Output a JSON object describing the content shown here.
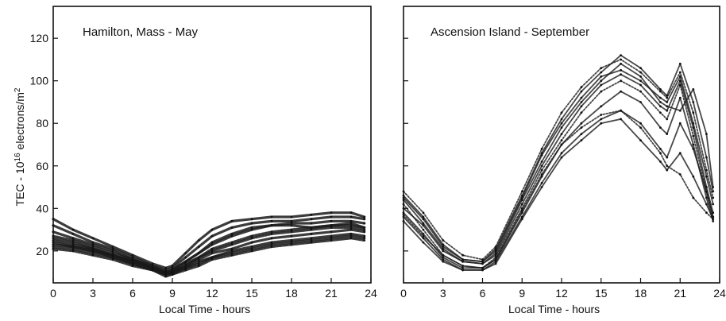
{
  "figure": {
    "ylabel": "TEC - 10^16 electrons/m^2",
    "colors": {
      "ink": "#111111",
      "trace": "#1a1a1a",
      "background": "#ffffff"
    }
  },
  "chart_data": [
    {
      "type": "line",
      "title": "Hamilton, Mass - May",
      "xlabel": "Local Time - hours",
      "ylabel": "TEC - 10^16 electrons/m^2",
      "xlim": [
        0,
        24
      ],
      "ylim": [
        5,
        135
      ],
      "xticks": [
        0,
        3,
        6,
        9,
        12,
        15,
        18,
        21,
        24
      ],
      "yticks": [
        20,
        40,
        60,
        80,
        100,
        120
      ],
      "grid": false,
      "x": [
        0,
        1.5,
        3,
        4.5,
        6,
        7.5,
        8.5,
        9,
        10,
        11,
        12,
        13.5,
        15,
        16.5,
        18,
        19.5,
        21,
        22.5,
        23.5
      ],
      "series": [
        {
          "values": [
            32,
            28,
            24,
            21,
            17,
            13,
            11,
            12,
            17,
            22,
            27,
            31,
            33,
            34,
            34,
            35,
            36,
            36,
            35
          ]
        },
        {
          "values": [
            29,
            26,
            23,
            20,
            16,
            13,
            10,
            11,
            15,
            19,
            23,
            27,
            30,
            32,
            33,
            33,
            34,
            34,
            33
          ]
        },
        {
          "values": [
            27,
            25,
            22,
            19,
            16,
            12,
            10,
            10,
            14,
            17,
            20,
            23,
            26,
            28,
            29,
            30,
            31,
            31,
            30
          ]
        },
        {
          "values": [
            25,
            23,
            21,
            18,
            15,
            12,
            9,
            10,
            13,
            16,
            19,
            21,
            24,
            26,
            27,
            28,
            29,
            30,
            29
          ]
        },
        {
          "values": [
            23,
            22,
            20,
            17,
            14,
            11,
            9,
            9,
            12,
            15,
            17,
            20,
            22,
            24,
            25,
            26,
            27,
            28,
            27
          ]
        },
        {
          "values": [
            21,
            20,
            18,
            16,
            13,
            11,
            8,
            9,
            11,
            13,
            16,
            18,
            20,
            22,
            23,
            24,
            25,
            26,
            25
          ]
        },
        {
          "values": [
            35,
            30,
            26,
            22,
            18,
            14,
            12,
            13,
            19,
            25,
            30,
            34,
            35,
            36,
            36,
            37,
            38,
            38,
            36
          ]
        },
        {
          "values": [
            24,
            22,
            20,
            18,
            15,
            12,
            10,
            11,
            15,
            19,
            24,
            28,
            31,
            32,
            32,
            31,
            32,
            33,
            31
          ]
        },
        {
          "values": [
            26,
            24,
            21,
            18,
            15,
            12,
            10,
            10,
            13,
            17,
            21,
            24,
            27,
            29,
            30,
            31,
            32,
            32,
            31
          ]
        },
        {
          "values": [
            22,
            21,
            19,
            17,
            14,
            11,
            9,
            10,
            12,
            14,
            17,
            19,
            21,
            23,
            24,
            25,
            26,
            27,
            26
          ]
        }
      ]
    },
    {
      "type": "line",
      "title": "Ascension Island - September",
      "xlabel": "Local Time - hours",
      "xlim": [
        0,
        24
      ],
      "ylim": [
        5,
        135
      ],
      "xticks": [
        0,
        3,
        6,
        9,
        12,
        15,
        18,
        21,
        24
      ],
      "yticks": [
        20,
        40,
        60,
        80,
        100,
        120
      ],
      "grid": false,
      "x": [
        0,
        1.5,
        3,
        4.5,
        6,
        7,
        9,
        10.5,
        12,
        13.5,
        15,
        16.5,
        18,
        19.5,
        20,
        21,
        22,
        23,
        23.5
      ],
      "series": [
        {
          "values": [
            45,
            35,
            22,
            16,
            15,
            20,
            45,
            65,
            80,
            92,
            102,
            105,
            100,
            92,
            90,
            102,
            80,
            55,
            42
          ]
        },
        {
          "values": [
            40,
            32,
            20,
            15,
            14,
            18,
            42,
            60,
            75,
            88,
            98,
            103,
            98,
            88,
            86,
            100,
            78,
            50,
            38
          ]
        },
        {
          "values": [
            42,
            30,
            18,
            13,
            12,
            17,
            40,
            58,
            72,
            85,
            95,
            100,
            95,
            85,
            82,
            98,
            74,
            48,
            36
          ]
        },
        {
          "values": [
            38,
            28,
            17,
            12,
            12,
            16,
            38,
            55,
            70,
            80,
            88,
            95,
            90,
            78,
            75,
            92,
            70,
            45,
            34
          ]
        },
        {
          "values": [
            36,
            26,
            16,
            11,
            11,
            15,
            36,
            52,
            66,
            75,
            82,
            86,
            80,
            68,
            64,
            80,
            68,
            48,
            36
          ]
        },
        {
          "values": [
            48,
            38,
            25,
            18,
            16,
            22,
            48,
            68,
            85,
            97,
            106,
            110,
            104,
            95,
            92,
            104,
            85,
            58,
            45
          ]
        },
        {
          "values": [
            34,
            24,
            15,
            11,
            11,
            14,
            35,
            50,
            64,
            72,
            80,
            82,
            72,
            62,
            58,
            66,
            55,
            42,
            35
          ]
        },
        {
          "values": [
            44,
            33,
            21,
            15,
            14,
            19,
            44,
            62,
            78,
            90,
            100,
            108,
            102,
            90,
            88,
            86,
            96,
            75,
            50
          ]
        },
        {
          "values": [
            37,
            27,
            18,
            13,
            12,
            16,
            39,
            56,
            70,
            78,
            84,
            86,
            78,
            66,
            60,
            56,
            45,
            38,
            35
          ]
        },
        {
          "values": [
            46,
            36,
            23,
            16,
            15,
            21,
            46,
            66,
            82,
            95,
            104,
            112,
            106,
            96,
            93,
            108,
            90,
            64,
            48
          ]
        }
      ]
    }
  ]
}
